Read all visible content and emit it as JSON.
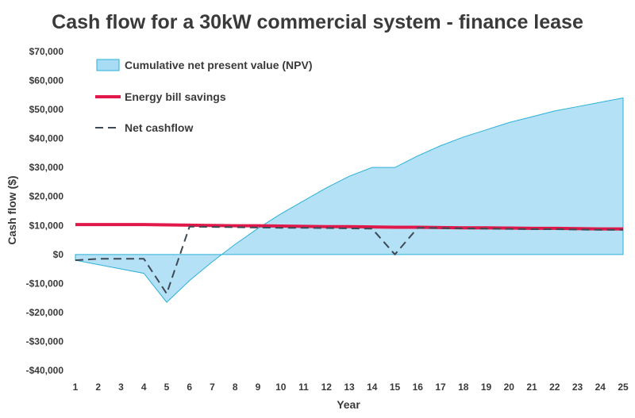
{
  "chart_data": {
    "type": "area",
    "title": "Cash flow for a 30kW commercial system - finance lease",
    "xlabel": "Year",
    "ylabel": "Cash flow ($)",
    "ylim": [
      -40000,
      70000
    ],
    "y_ticks": [
      70000,
      60000,
      50000,
      40000,
      30000,
      20000,
      10000,
      0,
      -10000,
      -20000,
      -30000,
      -40000
    ],
    "y_tick_labels": [
      "$70,000",
      "$60,000",
      "$50,000",
      "$40,000",
      "$30,000",
      "$20,000",
      "$10,000",
      "$0",
      "-$10,000",
      "-$20,000",
      "-$30,000",
      "-$40,000"
    ],
    "x": [
      1,
      2,
      3,
      4,
      5,
      6,
      7,
      8,
      9,
      10,
      11,
      12,
      13,
      14,
      15,
      16,
      17,
      18,
      19,
      20,
      21,
      22,
      23,
      24,
      25
    ],
    "x_tick_labels": [
      "1",
      "2",
      "3",
      "4",
      "5",
      "6",
      "7",
      "8",
      "9",
      "10",
      "11",
      "12",
      "13",
      "14",
      "15",
      "16",
      "17",
      "18",
      "19",
      "20",
      "21",
      "22",
      "23",
      "24",
      "25"
    ],
    "grid": false,
    "legend_position": "top-left",
    "series": [
      {
        "name": "Cumulative net present value (NPV)",
        "kind": "area",
        "color": "#a8dcf5",
        "edge_color": "#2ab0d8",
        "values": [
          -2000,
          -3500,
          -5000,
          -6500,
          -16500,
          -9000,
          -2500,
          3500,
          9000,
          14000,
          18500,
          23000,
          27000,
          30000,
          30000,
          34000,
          37500,
          40500,
          43000,
          45500,
          47500,
          49500,
          51000,
          52500,
          54000
        ]
      },
      {
        "name": "Energy bill savings",
        "kind": "line",
        "color": "#e0194a",
        "values": [
          10300,
          10300,
          10300,
          10300,
          10200,
          10100,
          10000,
          9900,
          9900,
          9800,
          9700,
          9600,
          9600,
          9500,
          9400,
          9400,
          9300,
          9200,
          9200,
          9100,
          9000,
          9000,
          8900,
          8800,
          8800
        ]
      },
      {
        "name": "Net cashflow",
        "kind": "dashed-line",
        "color": "#3d4a55",
        "values": [
          -2000,
          -1500,
          -1500,
          -1500,
          -13500,
          9600,
          9500,
          9400,
          9300,
          9200,
          9200,
          9100,
          9000,
          8900,
          0,
          9200,
          9100,
          9000,
          8900,
          8800,
          8700,
          8700,
          8600,
          8500,
          8500
        ]
      }
    ]
  }
}
